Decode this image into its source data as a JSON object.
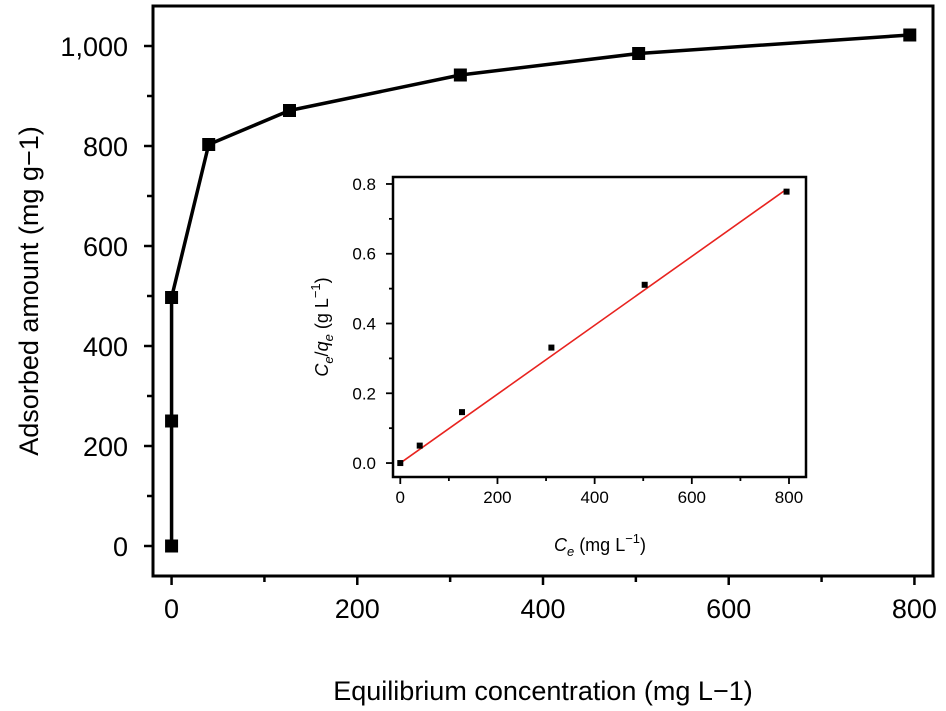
{
  "chart_data": [
    {
      "type": "line",
      "xlabel": "Equilibrium concentration (mg L−1)",
      "ylabel": "Adsorbed amount (mg g−1)",
      "xlim": [
        -20,
        820
      ],
      "ylim": [
        -60,
        1080
      ],
      "xticks": [
        0,
        200,
        400,
        600,
        800
      ],
      "xtick_labels": [
        "0",
        "200",
        "400",
        "600",
        "800"
      ],
      "yticks": [
        0,
        200,
        400,
        600,
        800,
        1000
      ],
      "ytick_labels": [
        "0",
        "200",
        "400",
        "600",
        "800",
        "1,000"
      ],
      "series": [
        {
          "marker": "square",
          "color": "#000000",
          "x": [
            0,
            0,
            0,
            40,
            127,
            311,
            503,
            795
          ],
          "y": [
            0,
            250,
            497,
            803,
            871,
            942,
            985,
            1022
          ]
        }
      ]
    },
    {
      "type": "scatter",
      "xlabel": "Ce (mg L−1)",
      "ylabel": "Ce/qe (g L−1)",
      "xlabel_parts": {
        "sym": "C",
        "sub": "e",
        "rest": " (mg L",
        "sup": "−1",
        "close": ")"
      },
      "ylabel_parts": {
        "sym1": "C",
        "sub1": "e",
        "slash": "/",
        "sym2": "q",
        "sub2": "e",
        "rest": " (g L",
        "sup": "−1",
        "close": ")"
      },
      "xlim": [
        -15,
        835
      ],
      "ylim": [
        -0.04,
        0.82
      ],
      "xticks": [
        0,
        200,
        400,
        600,
        800
      ],
      "xtick_labels": [
        "0",
        "200",
        "400",
        "600",
        "800"
      ],
      "yticks": [
        0.0,
        0.2,
        0.4,
        0.6,
        0.8
      ],
      "ytick_labels": [
        "0.0",
        "0.2",
        "0.4",
        "0.6",
        "0.8"
      ],
      "series": [
        {
          "marker": "square",
          "color": "#000000",
          "x": [
            0,
            40,
            127,
            311,
            503,
            795
          ],
          "y": [
            0.0,
            0.05,
            0.146,
            0.331,
            0.511,
            0.778
          ]
        }
      ],
      "fit_line": {
        "color": "#e8231f",
        "x": [
          0,
          795
        ],
        "y": [
          0.0,
          0.785
        ]
      }
    }
  ]
}
